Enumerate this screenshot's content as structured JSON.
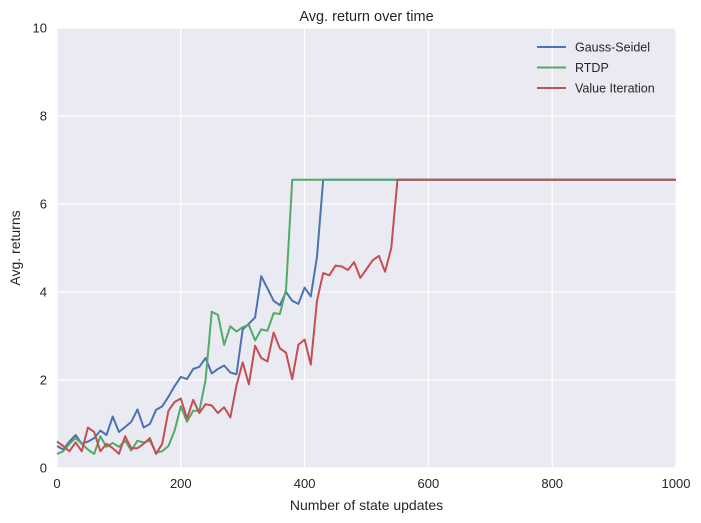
{
  "chart_data": {
    "type": "line",
    "title": "Avg. return over time",
    "xlabel": "Number of state updates",
    "ylabel": "Avg. returns",
    "xlim": [
      0,
      1000
    ],
    "ylim": [
      0,
      10
    ],
    "xticks": [
      0,
      200,
      400,
      600,
      800,
      1000
    ],
    "yticks": [
      0,
      2,
      4,
      6,
      8,
      10
    ],
    "xtick_labels": [
      "0",
      "200",
      "400",
      "600",
      "800",
      "1000"
    ],
    "ytick_labels": [
      "0",
      "2",
      "4",
      "6",
      "8",
      "10"
    ],
    "grid": true,
    "background": "#EAEAF2",
    "legend_position": "top-right",
    "series": [
      {
        "name": "Gauss-Seidel",
        "color": "#4C72B0",
        "x": [
          0,
          10,
          20,
          30,
          40,
          50,
          60,
          70,
          80,
          90,
          100,
          110,
          120,
          130,
          140,
          150,
          160,
          170,
          180,
          190,
          200,
          210,
          220,
          230,
          240,
          250,
          260,
          270,
          280,
          290,
          300,
          310,
          320,
          330,
          340,
          350,
          360,
          370,
          380,
          390,
          400,
          410,
          420,
          430,
          440,
          450,
          460,
          470,
          480,
          490,
          500,
          510,
          520,
          530,
          540,
          550,
          560,
          570,
          580,
          590,
          600,
          650,
          700,
          750,
          800,
          850,
          900,
          950,
          1000
        ],
        "y": [
          0.5,
          0.42,
          0.6,
          0.75,
          0.55,
          0.6,
          0.68,
          0.85,
          0.75,
          1.17,
          0.82,
          0.93,
          1.05,
          1.33,
          0.92,
          1.0,
          1.32,
          1.4,
          1.62,
          1.86,
          2.07,
          2.02,
          2.25,
          2.3,
          2.5,
          2.15,
          2.25,
          2.33,
          2.17,
          2.13,
          3.15,
          3.28,
          3.42,
          4.36,
          4.08,
          3.8,
          3.7,
          4.0,
          3.8,
          3.73,
          4.1,
          3.9,
          4.8,
          6.55,
          6.55,
          6.55,
          6.55,
          6.55,
          6.55,
          6.55,
          6.55,
          6.55,
          6.55,
          6.55,
          6.55,
          6.55,
          6.55,
          6.55,
          6.55,
          6.55,
          6.55,
          6.55,
          6.55,
          6.55,
          6.55,
          6.55,
          6.55,
          6.55,
          6.55
        ]
      },
      {
        "name": "RTDP",
        "color": "#55A868",
        "x": [
          0,
          10,
          20,
          30,
          40,
          50,
          60,
          70,
          80,
          90,
          100,
          110,
          120,
          130,
          140,
          150,
          160,
          170,
          180,
          190,
          200,
          210,
          220,
          230,
          240,
          250,
          260,
          270,
          280,
          290,
          300,
          310,
          320,
          330,
          340,
          350,
          360,
          370,
          380,
          390,
          400,
          450,
          500,
          550,
          600,
          650,
          700,
          750,
          800,
          850,
          900,
          950,
          1000
        ],
        "y": [
          0.32,
          0.38,
          0.55,
          0.68,
          0.55,
          0.42,
          0.32,
          0.72,
          0.48,
          0.57,
          0.48,
          0.62,
          0.4,
          0.62,
          0.58,
          0.62,
          0.35,
          0.38,
          0.5,
          0.85,
          1.4,
          1.05,
          1.3,
          1.3,
          2.0,
          3.55,
          3.48,
          2.8,
          3.22,
          3.1,
          3.2,
          3.25,
          2.9,
          3.15,
          3.12,
          3.52,
          3.5,
          4.05,
          6.55,
          6.55,
          6.55,
          6.55,
          6.55,
          6.55,
          6.55,
          6.55,
          6.55,
          6.55,
          6.55,
          6.55,
          6.55,
          6.55,
          6.55
        ]
      },
      {
        "name": "Value Iteration",
        "color": "#C44E52",
        "x": [
          0,
          10,
          20,
          30,
          40,
          50,
          60,
          70,
          80,
          90,
          100,
          110,
          120,
          130,
          140,
          150,
          160,
          170,
          180,
          190,
          200,
          210,
          220,
          230,
          240,
          250,
          260,
          270,
          280,
          290,
          300,
          310,
          320,
          330,
          340,
          350,
          360,
          370,
          380,
          390,
          400,
          410,
          420,
          430,
          440,
          450,
          460,
          470,
          480,
          490,
          500,
          510,
          520,
          530,
          540,
          550,
          600,
          650,
          700,
          750,
          800,
          850,
          900,
          950,
          1000
        ],
        "y": [
          0.6,
          0.5,
          0.38,
          0.58,
          0.38,
          0.92,
          0.82,
          0.38,
          0.55,
          0.45,
          0.32,
          0.72,
          0.45,
          0.45,
          0.55,
          0.68,
          0.32,
          0.55,
          1.3,
          1.5,
          1.58,
          1.12,
          1.55,
          1.25,
          1.45,
          1.42,
          1.25,
          1.38,
          1.15,
          1.88,
          2.4,
          1.9,
          2.78,
          2.5,
          2.42,
          3.08,
          2.72,
          2.62,
          2.02,
          2.8,
          2.92,
          2.35,
          3.8,
          4.43,
          4.38,
          4.6,
          4.58,
          4.5,
          4.68,
          4.32,
          4.52,
          4.72,
          4.82,
          4.46,
          5.0,
          6.55,
          6.55,
          6.55,
          6.55,
          6.55,
          6.55,
          6.55,
          6.55,
          6.55,
          6.55
        ]
      }
    ]
  }
}
